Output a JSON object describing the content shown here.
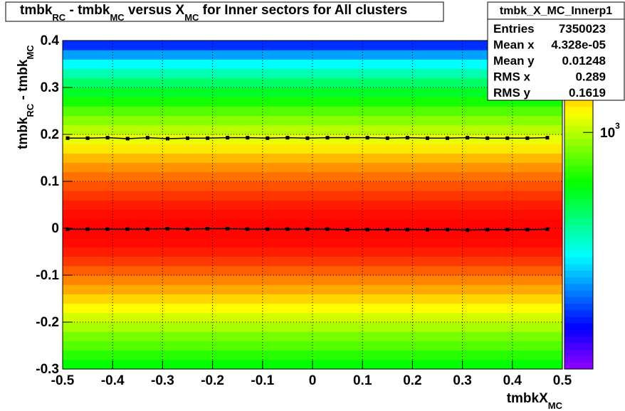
{
  "chart_data": {
    "type": "heatmap",
    "title": [
      "tmbk",
      "RC",
      " - tmbk",
      "MC",
      " versus X",
      "MC",
      " for Inner sectors for All clusters"
    ],
    "x_label": [
      "tmbkX",
      "MC"
    ],
    "y_label": [
      "tmbk",
      "RC",
      " - tmbk",
      "MC"
    ],
    "xlim": [
      -0.5,
      0.5
    ],
    "ylim": [
      -0.3,
      0.4
    ],
    "xticks": [
      {
        "value": -0.5,
        "label": "-0.5"
      },
      {
        "value": -0.4,
        "label": "-0.4"
      },
      {
        "value": -0.3,
        "label": "-0.3"
      },
      {
        "value": -0.2,
        "label": "-0.2"
      },
      {
        "value": -0.1,
        "label": "-0.1"
      },
      0,
      0.1,
      0.2,
      0.3,
      0.4,
      0.5
    ],
    "yticks": [
      {
        "value": -0.3,
        "label": "-0.3"
      },
      {
        "value": -0.2,
        "label": "-0.2"
      },
      {
        "value": -0.1,
        "label": "-0.1"
      },
      0,
      0.1,
      0.2,
      0.3,
      0.4
    ],
    "grid": true,
    "log_z": true,
    "zlim": [
      50,
      3200
    ],
    "zticks": [
      {
        "value": 1000,
        "label": "10",
        "exponent": "3"
      }
    ],
    "y_bins": [
      -0.3,
      -0.28,
      -0.26,
      -0.24,
      -0.22,
      -0.2,
      -0.18,
      -0.16,
      -0.14,
      -0.12,
      -0.1,
      -0.08,
      -0.06,
      -0.04,
      -0.02,
      0,
      0.02,
      0.04,
      0.06,
      0.08,
      0.1,
      0.12,
      0.14,
      0.16,
      0.18,
      0.2,
      0.22,
      0.24,
      0.26,
      0.28,
      0.3,
      0.32,
      0.34,
      0.36,
      0.38,
      0.4
    ],
    "values": [
      520,
      600,
      700,
      800,
      950,
      1100,
      1300,
      1500,
      1750,
      2000,
      2300,
      2600,
      2900,
      3100,
      3150,
      3150,
      3050,
      2900,
      2650,
      2400,
      2150,
      1900,
      1650,
      1400,
      1200,
      1000,
      850,
      700,
      560,
      450,
      360,
      280,
      210,
      150,
      100
    ],
    "series": [
      {
        "color": "#000000",
        "x": [
          -0.49,
          -0.45,
          -0.41,
          -0.37,
          -0.33,
          -0.29,
          -0.25,
          -0.21,
          -0.17,
          -0.13,
          -0.09,
          -0.05,
          -0.01,
          0.03,
          0.07,
          0.11,
          0.15,
          0.19,
          0.23,
          0.27,
          0.31,
          0.35,
          0.39,
          0.43,
          0.47
        ],
        "values": [
          0.192,
          0.192,
          0.193,
          0.191,
          0.193,
          0.191,
          0.192,
          0.192,
          0.193,
          0.193,
          0.192,
          0.193,
          0.192,
          0.193,
          0.193,
          0.193,
          0.192,
          0.193,
          0.192,
          0.192,
          0.193,
          0.192,
          0.192,
          0.192,
          0.193
        ]
      },
      {
        "color": "#000000",
        "x": [
          -0.49,
          -0.45,
          -0.41,
          -0.37,
          -0.33,
          -0.29,
          -0.25,
          -0.21,
          -0.17,
          -0.13,
          -0.09,
          -0.05,
          -0.01,
          0.03,
          0.07,
          0.11,
          0.15,
          0.19,
          0.23,
          0.27,
          0.31,
          0.35,
          0.39,
          0.43,
          0.47
        ],
        "values": [
          -0.002,
          -0.002,
          -0.002,
          -0.002,
          -0.002,
          -0.001,
          -0.002,
          -0.001,
          -0.001,
          -0.002,
          -0.002,
          -0.002,
          -0.002,
          -0.002,
          -0.003,
          -0.003,
          -0.003,
          -0.003,
          -0.003,
          -0.003,
          -0.004,
          -0.003,
          -0.003,
          -0.003,
          -0.002
        ]
      }
    ],
    "stats": {
      "name": "tmbk_X_MC_Innerp1",
      "rows": [
        [
          "Entries",
          "7350023"
        ],
        [
          "Mean x",
          "4.328e-05"
        ],
        [
          "Mean y",
          "0.01248"
        ],
        [
          "RMS x",
          "0.289"
        ],
        [
          "RMS y",
          "0.1619"
        ]
      ]
    }
  }
}
